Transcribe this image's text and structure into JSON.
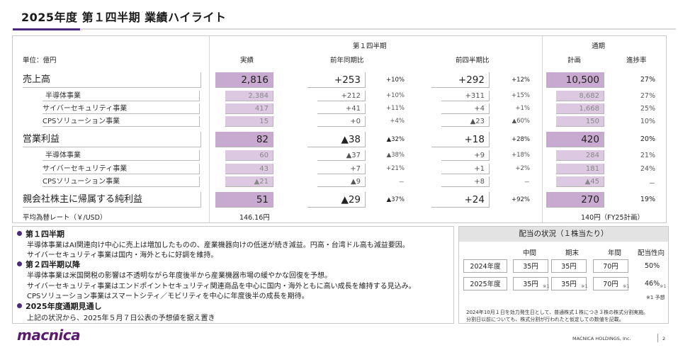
{
  "title": "2025年度 第１四半期 業績ハイライト",
  "headers": {
    "q1": "第１四半期",
    "fy": "通期",
    "unit": "単位：億円",
    "actual": "実績",
    "yoy": "前年同期比",
    "qoq": "前四半期比",
    "plan": "計画",
    "progress": "進捗率"
  },
  "rows": [
    {
      "label": "売上高",
      "actual": "2,816",
      "yoy": "+253",
      "yoy_pct": "+10%",
      "qoq": "+292",
      "qoq_pct": "+12%",
      "plan": "10,500",
      "progress": "27%",
      "main": true
    },
    {
      "label": "半導体事業",
      "actual": "2,384",
      "yoy": "+212",
      "yoy_pct": "+10%",
      "qoq": "+311",
      "qoq_pct": "+15%",
      "plan": "8,682",
      "progress": "27%",
      "main": false,
      "indent": 1
    },
    {
      "label": "サイバーセキュリティ事業",
      "actual": "417",
      "yoy": "+41",
      "yoy_pct": "+11%",
      "qoq": "+4",
      "qoq_pct": "+1%",
      "plan": "1,668",
      "progress": "25%",
      "main": false,
      "indent": 0
    },
    {
      "label": "CPSソリューション事業",
      "actual": "15",
      "yoy": "+0",
      "yoy_pct": "+4%",
      "qoq": "▲23",
      "qoq_pct": "▲60%",
      "plan": "150",
      "progress": "10%",
      "main": false,
      "indent": 0
    },
    {
      "label": "営業利益",
      "actual": "82",
      "yoy": "▲38",
      "yoy_pct": "▲32%",
      "qoq": "+18",
      "qoq_pct": "+28%",
      "plan": "420",
      "progress": "20%",
      "main": true
    },
    {
      "label": "半導体事業",
      "actual": "60",
      "yoy": "▲37",
      "yoy_pct": "▲38%",
      "qoq": "+9",
      "qoq_pct": "+18%",
      "plan": "284",
      "progress": "21%",
      "main": false,
      "indent": 1
    },
    {
      "label": "サイバーセキュリティ事業",
      "actual": "43",
      "yoy": "+7",
      "yoy_pct": "+21%",
      "qoq": "+1",
      "qoq_pct": "+2%",
      "plan": "181",
      "progress": "24%",
      "main": false,
      "indent": 0
    },
    {
      "label": "CPSソリューション事業",
      "actual": "▲21",
      "yoy": "▲9",
      "yoy_pct": "－",
      "qoq": "+8",
      "qoq_pct": "－",
      "plan": "▲45",
      "progress": "－",
      "main": false,
      "indent": 0
    },
    {
      "label": "親会社株主に帰属する純利益",
      "actual": "51",
      "yoy": "▲29",
      "yoy_pct": "▲37%",
      "qoq": "+24",
      "qoq_pct": "+92%",
      "plan": "270",
      "progress": "19%",
      "main": true
    }
  ],
  "fx": {
    "label": "平均為替レート（￥/USD）",
    "actual": "146.16円",
    "plan": "140円（FY25計画）"
  },
  "notes": [
    {
      "heading": "第１四半期",
      "lines": [
        "半導体事業はAI関連向け中心に売上は増加したものの、産業機器向けの低迷が続き減益。円高・台湾ドル高も減益要因。",
        "サイバーセキュリティ事業は国内・海外ともに好調を維持。"
      ]
    },
    {
      "heading": "第２四半期以降",
      "lines": [
        "半導体事業は米国関税の影響は不透明ながら年度後半から産業機器市場の緩やかな回復を予想。",
        "サイバーセキュリティ事業はエンドポイントセキュリティ関連商品を中心に国内・海外ともに高い成長を維持する見込み。",
        "CPSソリューション事業はスマートシティ／モビリティを中心に年度後半の成長を期待。"
      ]
    },
    {
      "heading": "2025年度通期見通し",
      "lines": [
        "上記の状況から、2025年５月７日公表の予想値を据え置き"
      ]
    }
  ],
  "dividend": {
    "title": "配当の状況（１株当たり）",
    "cols": {
      "interim": "中間",
      "yearend": "期末",
      "annual": "年間",
      "payout": "配当性向"
    },
    "rows": [
      {
        "year": "2024年度",
        "interim": "35円",
        "yearend": "35円",
        "annual": "70円",
        "payout": "50%",
        "sup": ""
      },
      {
        "year": "2025年度",
        "interim": "35円",
        "yearend": "35円",
        "annual": "70円",
        "payout": "46%",
        "sup": "※1"
      }
    ],
    "forecast_note": "※1 予想",
    "footnote1": "2024年10月１日を効力発生日として、普通株式１株につき３株の株式分割実施。",
    "footnote2": "分割日以前についても、株式分割が行われたと仮定しての数値を記載。"
  },
  "footer": {
    "logo": "macnica",
    "company": "MACNICA HOLDINGS, Inc.",
    "page": "2"
  },
  "colors": {
    "accent": "#4b2a7b",
    "box_main": "#c8a9cf",
    "box_sub": "#ddc8e1"
  }
}
